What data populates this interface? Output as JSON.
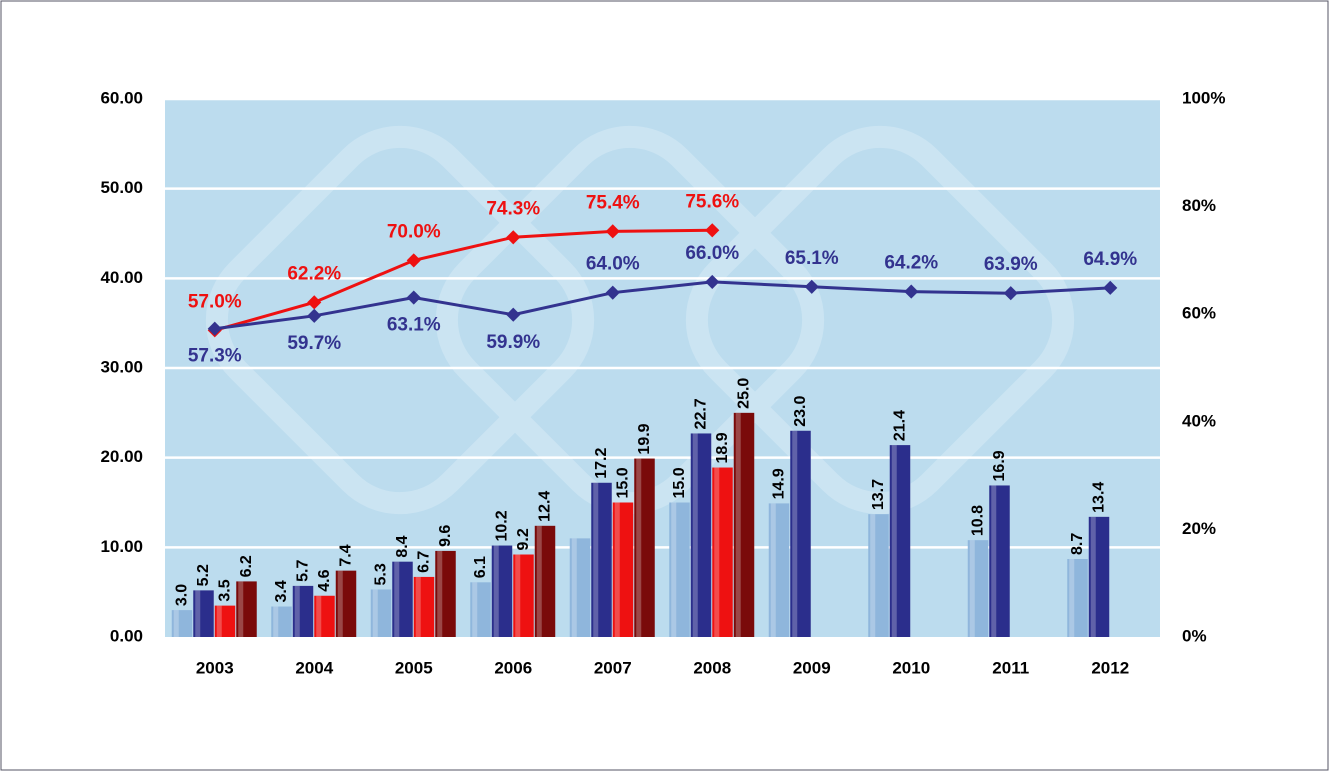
{
  "chart_data": {
    "type": "bar",
    "categories": [
      "2003",
      "2004",
      "2005",
      "2006",
      "2007",
      "2008",
      "2009",
      "2010",
      "2011",
      "2012"
    ],
    "series": [
      {
        "color": "#8fb6dc",
        "values": [
          3.0,
          3.4,
          5.3,
          6.1,
          11.0,
          15.0,
          14.9,
          13.7,
          10.8,
          8.7
        ],
        "value_labels": [
          "3.0",
          "3.4",
          "5.3",
          "6.1",
          null,
          "15.0",
          "14.9",
          "13.7",
          "10.8",
          "8.7"
        ]
      },
      {
        "color": "#2b2e8c",
        "values": [
          5.2,
          5.7,
          8.4,
          10.2,
          17.2,
          22.7,
          23.0,
          21.4,
          16.9,
          13.4
        ],
        "value_labels": [
          "5.2",
          "5.7",
          "8.4",
          "10.2",
          "17.2",
          "22.7",
          "23.0",
          "21.4",
          "16.9",
          "13.4"
        ]
      },
      {
        "color": "#ee1111",
        "values": [
          3.5,
          4.6,
          6.7,
          9.2,
          15.0,
          18.9,
          null,
          null,
          null,
          null
        ],
        "value_labels": [
          "3.5",
          "4.6",
          "6.7",
          "9.2",
          "15.0",
          "18.9",
          null,
          null,
          null,
          null
        ]
      },
      {
        "color": "#7a0a0a",
        "values": [
          6.2,
          7.4,
          9.6,
          12.4,
          19.9,
          25.0,
          null,
          null,
          null,
          null
        ],
        "value_labels": [
          "6.2",
          "7.4",
          "9.6",
          "12.4",
          "19.9",
          "25.0",
          null,
          null,
          null,
          null
        ]
      },
      {
        "type": "line",
        "axis": "y2",
        "color": "#ee1111",
        "values": [
          57.0,
          62.2,
          70.0,
          74.3,
          75.4,
          75.6,
          null,
          null,
          null,
          null
        ],
        "value_labels": [
          "57.0%",
          "62.2%",
          "70.0%",
          "74.3%",
          "75.4%",
          "75.6%",
          null,
          null,
          null,
          null
        ]
      },
      {
        "type": "line",
        "axis": "y2",
        "color": "#33338f",
        "values": [
          57.3,
          59.7,
          63.1,
          59.9,
          64.0,
          66.0,
          65.1,
          64.2,
          63.9,
          64.9
        ],
        "value_labels": [
          "57.3%",
          "59.7%",
          "63.1%",
          "59.9%",
          "64.0%",
          "66.0%",
          "65.1%",
          "64.2%",
          "63.9%",
          "64.9%"
        ]
      }
    ],
    "ylim": [
      0,
      60
    ],
    "yticks": [
      {
        "value": 0,
        "label": "0.00"
      },
      {
        "value": 10,
        "label": "10.00"
      },
      {
        "value": 20,
        "label": "20.00"
      },
      {
        "value": 30,
        "label": "30.00"
      },
      {
        "value": 40,
        "label": "40.00"
      },
      {
        "value": 50,
        "label": "50.00"
      },
      {
        "value": 60,
        "label": "60.00"
      }
    ],
    "y2lim": [
      0,
      100
    ],
    "y2ticks": [
      {
        "value": 0,
        "label": "0%"
      },
      {
        "value": 20,
        "label": "20%"
      },
      {
        "value": 40,
        "label": "40%"
      },
      {
        "value": 60,
        "label": "60%"
      },
      {
        "value": 80,
        "label": "80%"
      },
      {
        "value": 100,
        "label": "100%"
      }
    ],
    "grid": true
  }
}
